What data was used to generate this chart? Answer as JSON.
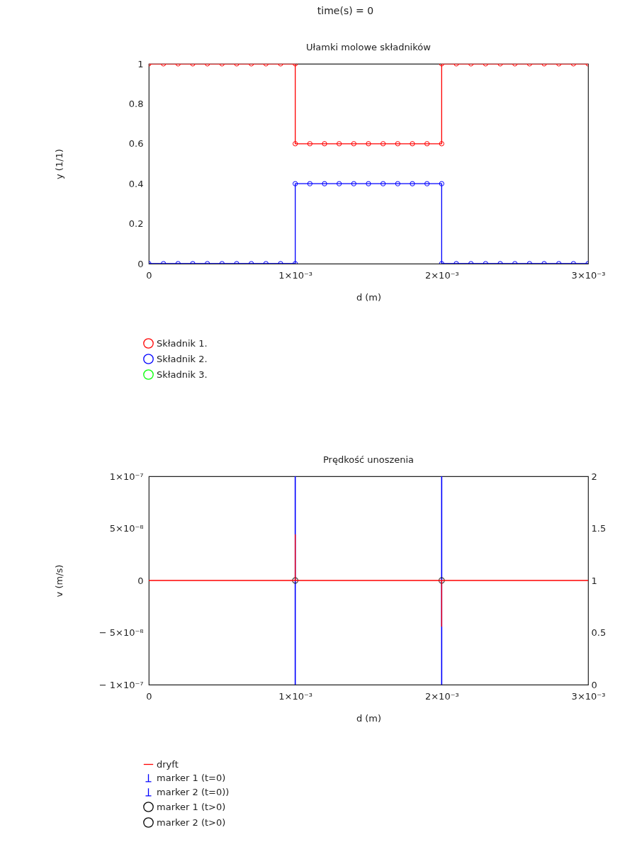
{
  "chart_data": [
    {
      "type": "line",
      "title": "Ułamki molowe składników",
      "annotations": [
        "time(s) = 0"
      ],
      "xlabel": "d (m)",
      "ylabel": "y (1/1)",
      "xlim": [
        0,
        0.003
      ],
      "xticks": [
        0,
        {
          "value": 0.001,
          "label": "1×10⁻³"
        },
        {
          "value": 0.002,
          "label": "2×10⁻³"
        },
        {
          "value": 0.003,
          "label": "3×10⁻³"
        }
      ],
      "ylim": [
        0,
        1
      ],
      "yticks": [
        0,
        0.2,
        0.4,
        0.6,
        0.8,
        1
      ],
      "legend": "bottom",
      "marker": "circle",
      "x": [
        0,
        0.0001,
        0.0002,
        0.0003,
        0.0004,
        0.0005,
        0.0006,
        0.0007,
        0.0008,
        0.0009,
        0.001,
        0.001,
        0.0011,
        0.0012,
        0.0013,
        0.0014,
        0.0015,
        0.0016,
        0.0017,
        0.0018,
        0.0019,
        0.002,
        0.002,
        0.0021,
        0.0022,
        0.0023,
        0.0024,
        0.0025,
        0.0026,
        0.0027,
        0.0028,
        0.0029,
        0.003
      ],
      "series": [
        {
          "name": "Składnik 1.",
          "color": "#ff0000",
          "values": [
            1,
            1,
            1,
            1,
            1,
            1,
            1,
            1,
            1,
            1,
            1,
            0.6,
            0.6,
            0.6,
            0.6,
            0.6,
            0.6,
            0.6,
            0.6,
            0.6,
            0.6,
            0.6,
            1,
            1,
            1,
            1,
            1,
            1,
            1,
            1,
            1,
            1,
            1
          ]
        },
        {
          "name": "Składnik 2.",
          "color": "#0000ff",
          "values": [
            0,
            0,
            0,
            0,
            0,
            0,
            0,
            0,
            0,
            0,
            0,
            0.4,
            0.4,
            0.4,
            0.4,
            0.4,
            0.4,
            0.4,
            0.4,
            0.4,
            0.4,
            0.4,
            0,
            0,
            0,
            0,
            0,
            0,
            0,
            0,
            0,
            0,
            0
          ]
        },
        {
          "name": "Składnik 3.",
          "color": "#00ff00",
          "values": [
            null,
            null,
            null,
            null,
            null,
            null,
            null,
            null,
            null,
            null,
            null,
            null,
            null,
            null,
            null,
            null,
            null,
            null,
            null,
            null,
            null,
            null,
            null,
            null,
            null,
            null,
            null,
            null,
            null,
            null,
            null,
            null,
            null
          ]
        }
      ]
    },
    {
      "type": "line",
      "title": "Prędkość unoszenia",
      "xlabel": "d (m)",
      "ylabel": "v (m/s)",
      "xlim": [
        0,
        0.003
      ],
      "xticks": [
        0,
        {
          "value": 0.001,
          "label": "1×10⁻³"
        },
        {
          "value": 0.002,
          "label": "2×10⁻³"
        },
        {
          "value": 0.003,
          "label": "3×10⁻³"
        }
      ],
      "ylim": [
        -1e-07,
        1e-07
      ],
      "yticks": [
        {
          "value": -1e-07,
          "label": "− 1×10⁻⁷"
        },
        {
          "value": -5e-08,
          "label": "− 5×10⁻⁸"
        },
        0,
        {
          "value": 5e-08,
          "label": "5×10⁻⁸"
        },
        {
          "value": 1e-07,
          "label": "1×10⁻⁷"
        }
      ],
      "y2lim": [
        0,
        2
      ],
      "y2ticks": [
        0,
        0.5,
        1,
        1.5,
        2
      ],
      "legend": "bottom",
      "series": [
        {
          "name": "dryft",
          "color": "#ff0000",
          "x": [
            0,
            0.001,
            0.001,
            0.001,
            0.002,
            0.002,
            0.002,
            0.003
          ],
          "values": [
            0,
            0,
            4.4e-08,
            0,
            0,
            -4.4e-08,
            0,
            0
          ]
        },
        {
          "name": "marker 1 (t=0)",
          "color": "#0000ff",
          "axis": "y2",
          "type": "bar",
          "x": [
            0.001
          ],
          "values": [
            2
          ]
        },
        {
          "name": "marker 2 (t=0))",
          "color": "#0000ff",
          "axis": "y2",
          "type": "bar",
          "x": [
            0.002
          ],
          "values": [
            2
          ]
        },
        {
          "name": "marker 1 (t>0)",
          "color": "#000000",
          "axis": "y2",
          "type": "scatter",
          "marker": "circle",
          "x": [
            0.001
          ],
          "values": [
            1
          ]
        },
        {
          "name": "marker 2 (t>0)",
          "color": "#000000",
          "axis": "y2",
          "type": "scatter",
          "marker": "circle",
          "x": [
            0.002
          ],
          "values": [
            1
          ]
        }
      ]
    }
  ]
}
